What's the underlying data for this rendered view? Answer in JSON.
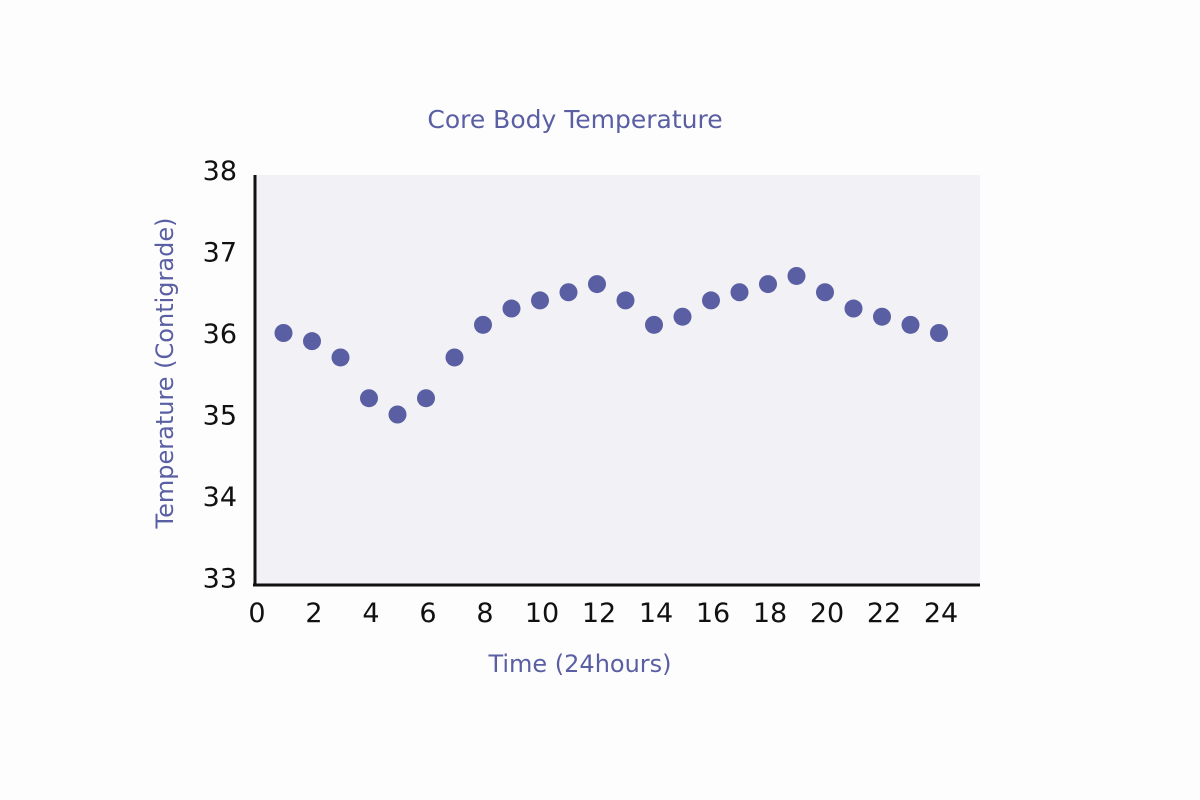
{
  "chart_data": {
    "type": "scatter",
    "title": "Core Body Temperature",
    "xlabel": "Time (24hours)",
    "ylabel": "Temperature (Contigrade)",
    "xlim": [
      0,
      25
    ],
    "ylim": [
      33,
      38
    ],
    "xticks": [
      0,
      2,
      4,
      6,
      8,
      10,
      12,
      14,
      16,
      18,
      20,
      22,
      24
    ],
    "yticks": [
      33,
      34,
      35,
      36,
      37,
      38
    ],
    "grid": false,
    "series": [
      {
        "x": [
          1,
          2,
          3,
          4,
          5,
          6,
          7,
          8,
          9,
          10,
          11,
          12,
          13,
          14,
          15,
          16,
          17,
          18,
          19,
          20,
          21,
          22,
          23,
          24
        ],
        "y": [
          36.0,
          35.9,
          35.7,
          35.2,
          35.0,
          35.2,
          35.7,
          36.1,
          36.3,
          36.4,
          36.5,
          36.6,
          36.4,
          36.1,
          36.2,
          36.4,
          36.5,
          36.6,
          36.7,
          36.5,
          36.3,
          36.2,
          36.1,
          36.0
        ]
      }
    ]
  },
  "colors": {
    "marker": "#5a5fa3",
    "plot_background": "#f1f1f6",
    "axis_line": "#111111",
    "label_text": "#5a5fa3"
  }
}
